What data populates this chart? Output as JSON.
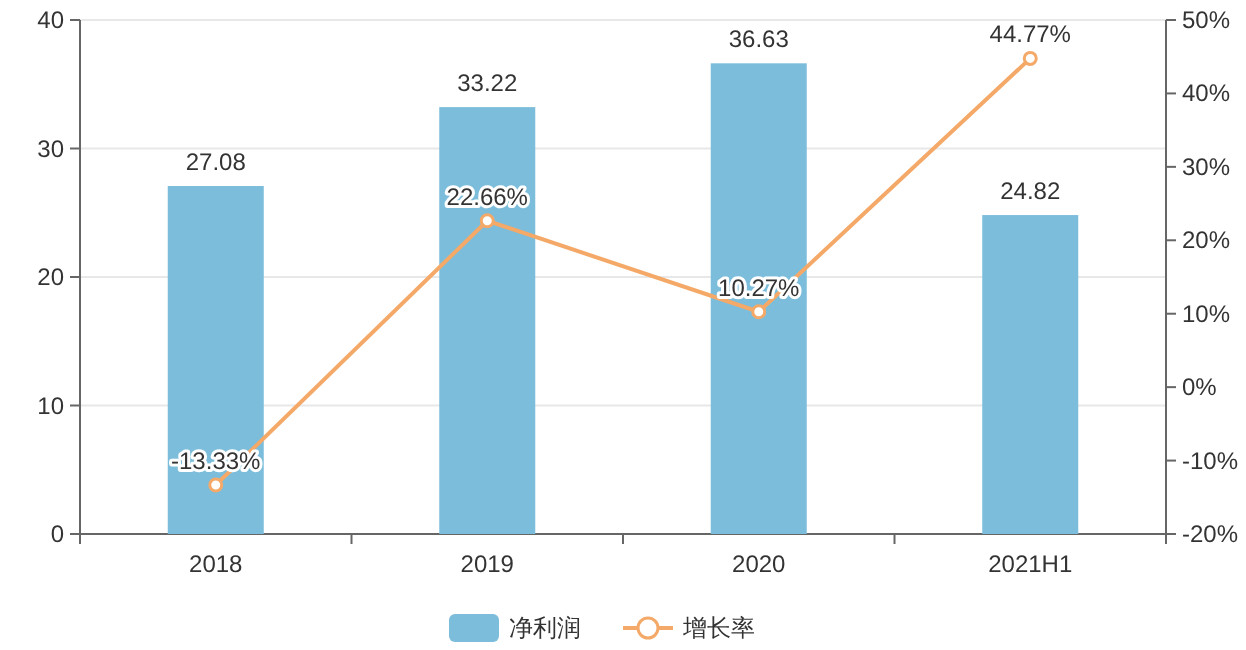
{
  "chart_data": {
    "type": "bar",
    "categories": [
      "2018",
      "2019",
      "2020",
      "2021H1"
    ],
    "series": [
      {
        "name": "净利润",
        "color": "#7bbddb",
        "values": [
          27.08,
          33.22,
          36.63,
          24.82
        ],
        "value_labels": [
          "27.08",
          "33.22",
          "36.63",
          "24.82"
        ]
      },
      {
        "name": "增长率",
        "type": "line",
        "axis": "y2",
        "color": "#f4a968",
        "marker": "circle",
        "values": [
          -13.33,
          22.66,
          10.27,
          44.77
        ],
        "value_labels": [
          "-13.33%",
          "22.66%",
          "10.27%",
          "44.77%"
        ]
      }
    ],
    "ylim": [
      0,
      40
    ],
    "yticks": [
      0,
      10,
      20,
      30,
      40
    ],
    "y2lim": [
      -20,
      50
    ],
    "y2ticks": [
      {
        "value": -20,
        "label": "-20%"
      },
      {
        "value": -10,
        "label": "-10%"
      },
      {
        "value": 0,
        "label": "0%"
      },
      {
        "value": 10,
        "label": "10%"
      },
      {
        "value": 20,
        "label": "20%"
      },
      {
        "value": 30,
        "label": "30%"
      },
      {
        "value": 40,
        "label": "40%"
      },
      {
        "value": 50,
        "label": "50%"
      }
    ],
    "grid": "y",
    "legend": "bottom"
  }
}
